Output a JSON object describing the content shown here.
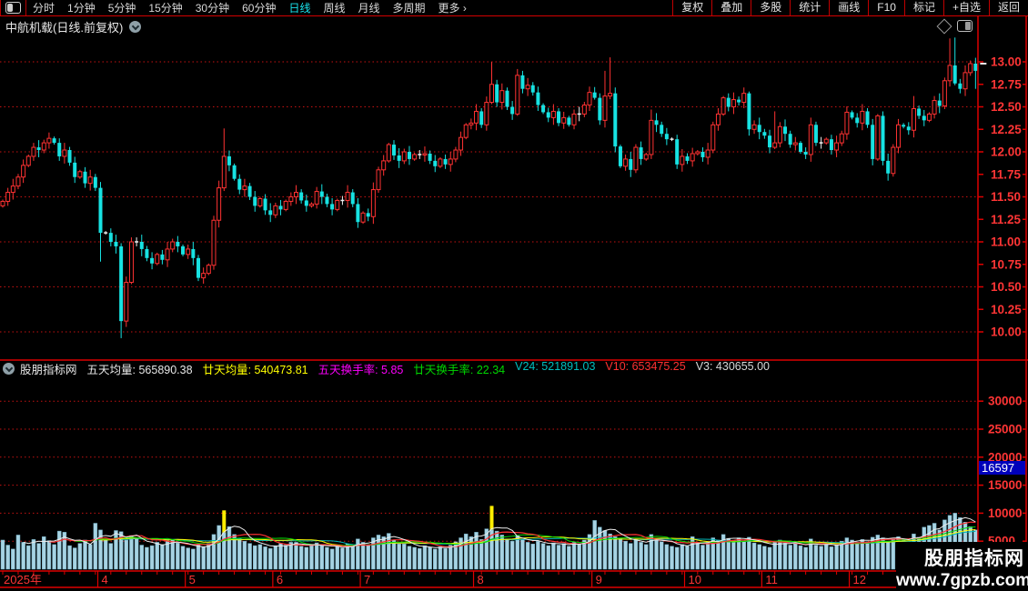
{
  "menu": {
    "left_items": [
      {
        "label": "分时",
        "active": false
      },
      {
        "label": "1分钟",
        "active": false
      },
      {
        "label": "5分钟",
        "active": false
      },
      {
        "label": "15分钟",
        "active": false
      },
      {
        "label": "30分钟",
        "active": false
      },
      {
        "label": "60分钟",
        "active": false
      },
      {
        "label": "日线",
        "active": true
      },
      {
        "label": "周线",
        "active": false
      },
      {
        "label": "月线",
        "active": false
      },
      {
        "label": "多周期",
        "active": false
      },
      {
        "label": "更多 ›",
        "active": false
      }
    ],
    "right_items": [
      "复权",
      "叠加",
      "多股",
      "统计",
      "画线",
      "F10",
      "标记",
      "+自选",
      "返回"
    ]
  },
  "title": {
    "text": "中航机载(日线.前复权)"
  },
  "indicator": {
    "source_name": "股朋指标网",
    "fields": [
      {
        "label": "五天均量",
        "value": "565890.38",
        "color": "#e8e8e8"
      },
      {
        "label": "廿天均量",
        "value": "540473.81",
        "color": "#ffff00"
      },
      {
        "label": "五天换手率",
        "value": "5.85",
        "color": "#ff00ff"
      },
      {
        "label": "廿天换手率",
        "value": "22.34",
        "color": "#00d800"
      },
      {
        "label": "V24",
        "value": "521891.03",
        "color": "#00c0c0"
      },
      {
        "label": "V10",
        "value": "653475.25",
        "color": "#ff3232"
      },
      {
        "label": "V3",
        "value": "430655.00",
        "color": "#d8d8d8"
      }
    ]
  },
  "watermark": {
    "line1": "股朋指标网",
    "line2": "www.7gpzb.com"
  },
  "colors": {
    "up": "#ff3232",
    "down": "#17e2e2",
    "doji": "#f0f0f0",
    "frame": "#dd0000",
    "grid": "#c41212",
    "label_red": "#ff3535",
    "vol_bar": "#a7d3e3",
    "vol_marker": "#ffee00",
    "last_vol_bg": "#0000bb",
    "ma5": "#ececec",
    "ma10": "#ff3232",
    "ma15": "#00d800",
    "ma20": "#ffff00",
    "ma24": "#00b8b8"
  },
  "chart_data": {
    "type": "candlestick",
    "title": "中航机载 日线 前复权",
    "price_ticks": [
      "13.00",
      "12.75",
      "12.50",
      "12.25",
      "12.00",
      "11.75",
      "11.50",
      "11.25",
      "11.00",
      "10.75",
      "10.50",
      "10.25",
      "10.00"
    ],
    "price_gridlines": [
      13.0,
      12.5,
      12.0,
      11.5,
      11.0,
      10.5,
      10.0
    ],
    "price_ylim": [
      9.7,
      13.45
    ],
    "volume_ticks": [
      "30000",
      "25000",
      "20000",
      "15000",
      "10000",
      "5000"
    ],
    "volume_tick_values": [
      30000,
      25000,
      20000,
      15000,
      10000,
      5000
    ],
    "last_volume_label": "16597",
    "last_price_marker": 12.99,
    "closes": [
      11.45,
      11.55,
      11.62,
      11.72,
      11.85,
      11.95,
      12.05,
      12.02,
      12.1,
      12.15,
      12.1,
      11.95,
      12.02,
      11.88,
      11.72,
      11.78,
      11.65,
      11.72,
      11.6,
      11.1,
      11.1,
      11.0,
      10.95,
      10.12,
      10.55,
      11.0,
      11.0,
      10.92,
      10.82,
      10.76,
      10.86,
      10.8,
      10.92,
      11.0,
      10.95,
      10.86,
      10.92,
      10.82,
      10.6,
      10.65,
      10.74,
      11.24,
      11.6,
      11.95,
      11.85,
      11.7,
      11.58,
      11.62,
      11.5,
      11.4,
      11.48,
      11.35,
      11.3,
      11.4,
      11.36,
      11.45,
      11.5,
      11.55,
      11.46,
      11.4,
      11.42,
      11.56,
      11.5,
      11.42,
      11.36,
      11.46,
      11.46,
      11.55,
      11.42,
      11.22,
      11.32,
      11.28,
      11.58,
      11.8,
      11.9,
      12.08,
      11.96,
      11.9,
      12.0,
      11.92,
      11.97,
      11.97,
      11.98,
      11.9,
      11.84,
      11.92,
      11.86,
      11.92,
      12.02,
      12.16,
      12.3,
      12.32,
      12.45,
      12.3,
      12.55,
      12.75,
      12.55,
      12.68,
      12.5,
      12.42,
      12.85,
      12.7,
      12.74,
      12.66,
      12.52,
      12.44,
      12.38,
      12.45,
      12.32,
      12.38,
      12.3,
      12.42,
      12.42,
      12.52,
      12.66,
      12.6,
      12.35,
      12.62,
      12.65,
      12.06,
      11.84,
      11.92,
      11.8,
      12.05,
      11.92,
      11.97,
      12.35,
      12.3,
      12.2,
      12.14,
      12.14,
      11.86,
      11.95,
      11.9,
      11.98,
      12.0,
      11.94,
      12.02,
      12.3,
      12.42,
      12.6,
      12.5,
      12.58,
      12.55,
      12.65,
      12.25,
      12.3,
      12.22,
      12.18,
      12.05,
      12.1,
      12.28,
      12.2,
      12.08,
      12.1,
      12.0,
      11.97,
      12.3,
      12.1,
      12.1,
      12.14,
      12.02,
      12.1,
      12.2,
      12.44,
      12.38,
      12.32,
      12.45,
      12.3,
      11.92,
      12.4,
      11.9,
      11.76,
      12.05,
      12.3,
      12.28,
      12.24,
      12.48,
      12.4,
      12.35,
      12.42,
      12.57,
      12.51,
      12.79,
      12.96,
      12.76,
      12.7,
      12.88,
      12.98,
      12.9
    ],
    "wick_overrides": {
      "19": {
        "l": 10.78
      },
      "23": {
        "l": 9.93
      },
      "25": {
        "h": 11.05
      },
      "43": {
        "h": 12.26
      },
      "95": {
        "h": 13.0
      },
      "100": {
        "h": 12.92
      },
      "115": {
        "h": 12.72
      },
      "117": {
        "h": 12.9
      },
      "118": {
        "h": 13.05
      },
      "126": {
        "h": 12.47
      },
      "145": {
        "l": 12.18
      },
      "150": {
        "h": 12.45
      },
      "157": {
        "h": 12.38
      },
      "169": {
        "l": 11.85
      },
      "172": {
        "l": 11.68
      },
      "177": {
        "h": 12.62
      },
      "184": {
        "h": 13.26
      },
      "185": {
        "h": 13.27
      },
      "189": {
        "l": 12.7
      }
    },
    "volumes": [
      5200,
      4300,
      3600,
      6100,
      4800,
      4200,
      5300,
      4600,
      5800,
      5100,
      4400,
      6800,
      6600,
      4200,
      3800,
      4600,
      5200,
      4400,
      8200,
      7000,
      5200,
      4600,
      6900,
      6700,
      5200,
      6000,
      5600,
      4300,
      3900,
      4200,
      4800,
      4400,
      5100,
      5300,
      4700,
      4100,
      3800,
      3600,
      4400,
      4000,
      4600,
      6200,
      7800,
      10500,
      7600,
      6200,
      5500,
      5000,
      4600,
      4200,
      4400,
      4000,
      3700,
      4200,
      4600,
      4300,
      4800,
      4800,
      4100,
      3900,
      4300,
      4700,
      4200,
      3900,
      3600,
      4100,
      3800,
      4500,
      4200,
      5400,
      4800,
      4400,
      5600,
      6100,
      5800,
      6400,
      5200,
      4500,
      4500,
      4100,
      3900,
      3700,
      4200,
      3900,
      3600,
      4000,
      3700,
      4300,
      4900,
      5600,
      6300,
      5800,
      6600,
      5300,
      7200,
      11300,
      6800,
      6100,
      5400,
      5000,
      6000,
      5300,
      4800,
      4500,
      5000,
      4600,
      4200,
      4700,
      4300,
      4600,
      4100,
      4800,
      4400,
      5200,
      6200,
      8700,
      7500,
      6900,
      6300,
      5800,
      5500,
      5000,
      4600,
      5300,
      4800,
      4400,
      6200,
      5400,
      4900,
      4400,
      4100,
      3900,
      4400,
      4100,
      5800,
      4700,
      4300,
      4800,
      5600,
      5200,
      6200,
      5500,
      5100,
      5600,
      5000,
      5700,
      4700,
      4400,
      4100,
      3900,
      4900,
      5200,
      4700,
      4300,
      4600,
      4200,
      3900,
      5400,
      4300,
      4100,
      4400,
      4000,
      4500,
      5000,
      5600,
      5200,
      4800,
      5300,
      4900,
      5700,
      6100,
      5600,
      5000,
      5400,
      5800,
      5300,
      4900,
      6300,
      5700,
      7500,
      7800,
      8200,
      7000,
      8800,
      9600,
      10000,
      9200,
      8400,
      7600,
      7000
    ],
    "volume_marker_indices": [
      43,
      95
    ],
    "month_ticks": [
      {
        "label": "2025年",
        "index": 0
      },
      {
        "label": "4",
        "index": 19
      },
      {
        "label": "5",
        "index": 36
      },
      {
        "label": "6",
        "index": 53
      },
      {
        "label": "7",
        "index": 70
      },
      {
        "label": "8",
        "index": 92
      },
      {
        "label": "9",
        "index": 115
      },
      {
        "label": "10",
        "index": 133
      },
      {
        "label": "11",
        "index": 148
      },
      {
        "label": "12",
        "index": 165
      }
    ]
  }
}
